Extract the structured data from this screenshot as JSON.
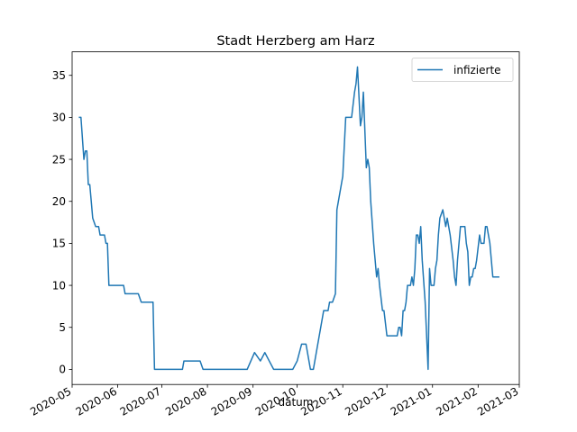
{
  "chart_data": {
    "type": "line",
    "title": "Stadt Herzberg am Harz",
    "xlabel": "datum",
    "ylabel": "",
    "ylim": [
      -1.8,
      37.8
    ],
    "xlim": [
      "2020-05-01",
      "2021-03-01"
    ],
    "x_ticks": [
      "2020-05",
      "2020-06",
      "2020-07",
      "2020-08",
      "2020-09",
      "2020-10",
      "2020-11",
      "2020-12",
      "2021-01",
      "2021-02",
      "2021-03"
    ],
    "y_ticks": [
      0,
      5,
      10,
      15,
      20,
      25,
      30,
      35
    ],
    "legend": "top-right",
    "grid": false,
    "color": "#1f77b4",
    "series": [
      {
        "name": "infizierte",
        "points": [
          [
            "2020-05-06",
            30
          ],
          [
            "2020-05-07",
            30
          ],
          [
            "2020-05-09",
            25
          ],
          [
            "2020-05-10",
            26
          ],
          [
            "2020-05-11",
            26
          ],
          [
            "2020-05-12",
            22
          ],
          [
            "2020-05-13",
            22
          ],
          [
            "2020-05-14",
            20
          ],
          [
            "2020-05-15",
            18
          ],
          [
            "2020-05-17",
            17
          ],
          [
            "2020-05-19",
            17
          ],
          [
            "2020-05-20",
            16
          ],
          [
            "2020-05-23",
            16
          ],
          [
            "2020-05-24",
            15
          ],
          [
            "2020-05-25",
            15
          ],
          [
            "2020-05-26",
            10
          ],
          [
            "2020-06-05",
            10
          ],
          [
            "2020-06-06",
            9
          ],
          [
            "2020-06-15",
            9
          ],
          [
            "2020-06-17",
            8
          ],
          [
            "2020-06-25",
            8
          ],
          [
            "2020-06-26",
            0
          ],
          [
            "2020-07-15",
            0
          ],
          [
            "2020-07-16",
            1
          ],
          [
            "2020-07-27",
            1
          ],
          [
            "2020-07-29",
            0
          ],
          [
            "2020-08-28",
            0
          ],
          [
            "2020-09-02",
            2
          ],
          [
            "2020-09-06",
            1
          ],
          [
            "2020-09-09",
            2
          ],
          [
            "2020-09-12",
            1
          ],
          [
            "2020-09-15",
            0
          ],
          [
            "2020-09-28",
            0
          ],
          [
            "2020-10-01",
            1
          ],
          [
            "2020-10-04",
            3
          ],
          [
            "2020-10-07",
            3
          ],
          [
            "2020-10-10",
            0
          ],
          [
            "2020-10-12",
            0
          ],
          [
            "2020-10-15",
            3
          ],
          [
            "2020-10-19",
            7
          ],
          [
            "2020-10-22",
            7
          ],
          [
            "2020-10-23",
            8
          ],
          [
            "2020-10-25",
            8
          ],
          [
            "2020-10-27",
            9
          ],
          [
            "2020-10-28",
            19
          ],
          [
            "2020-11-01",
            23
          ],
          [
            "2020-11-03",
            30
          ],
          [
            "2020-11-07",
            30
          ],
          [
            "2020-11-09",
            33
          ],
          [
            "2020-11-10",
            34
          ],
          [
            "2020-11-11",
            36
          ],
          [
            "2020-11-13",
            29
          ],
          [
            "2020-11-14",
            30
          ],
          [
            "2020-11-15",
            33
          ],
          [
            "2020-11-17",
            24
          ],
          [
            "2020-11-18",
            25
          ],
          [
            "2020-11-19",
            24
          ],
          [
            "2020-11-20",
            20
          ],
          [
            "2020-11-22",
            15
          ],
          [
            "2020-11-24",
            11
          ],
          [
            "2020-11-25",
            12
          ],
          [
            "2020-11-26",
            10
          ],
          [
            "2020-11-28",
            7
          ],
          [
            "2020-11-29",
            7
          ],
          [
            "2020-12-01",
            4
          ],
          [
            "2020-12-08",
            4
          ],
          [
            "2020-12-09",
            5
          ],
          [
            "2020-12-10",
            5
          ],
          [
            "2020-12-11",
            4
          ],
          [
            "2020-12-12",
            7
          ],
          [
            "2020-12-13",
            7
          ],
          [
            "2020-12-14",
            8
          ],
          [
            "2020-12-15",
            10
          ],
          [
            "2020-12-17",
            10
          ],
          [
            "2020-12-18",
            11
          ],
          [
            "2020-12-19",
            10
          ],
          [
            "2020-12-20",
            12
          ],
          [
            "2020-12-21",
            16
          ],
          [
            "2020-12-22",
            16
          ],
          [
            "2020-12-23",
            15
          ],
          [
            "2020-12-24",
            17
          ],
          [
            "2020-12-25",
            13
          ],
          [
            "2020-12-27",
            8
          ],
          [
            "2020-12-29",
            0
          ],
          [
            "2020-12-30",
            12
          ],
          [
            "2020-12-31",
            10
          ],
          [
            "2021-01-02",
            10
          ],
          [
            "2021-01-03",
            12
          ],
          [
            "2021-01-04",
            13
          ],
          [
            "2021-01-05",
            16
          ],
          [
            "2021-01-06",
            18
          ],
          [
            "2021-01-08",
            19
          ],
          [
            "2021-01-09",
            18
          ],
          [
            "2021-01-10",
            17
          ],
          [
            "2021-01-11",
            18
          ],
          [
            "2021-01-13",
            16
          ],
          [
            "2021-01-15",
            13
          ],
          [
            "2021-01-16",
            11
          ],
          [
            "2021-01-17",
            10
          ],
          [
            "2021-01-18",
            13
          ],
          [
            "2021-01-20",
            17
          ],
          [
            "2021-01-23",
            17
          ],
          [
            "2021-01-24",
            15
          ],
          [
            "2021-01-25",
            14
          ],
          [
            "2021-01-26",
            10
          ],
          [
            "2021-01-27",
            11
          ],
          [
            "2021-01-28",
            11
          ],
          [
            "2021-01-29",
            12
          ],
          [
            "2021-01-30",
            12
          ],
          [
            "2021-01-31",
            13
          ],
          [
            "2021-02-02",
            16
          ],
          [
            "2021-02-03",
            15
          ],
          [
            "2021-02-05",
            15
          ],
          [
            "2021-02-06",
            17
          ],
          [
            "2021-02-07",
            17
          ],
          [
            "2021-02-09",
            15
          ],
          [
            "2021-02-10",
            13
          ],
          [
            "2021-02-11",
            11
          ],
          [
            "2021-02-15",
            11
          ]
        ]
      }
    ]
  }
}
